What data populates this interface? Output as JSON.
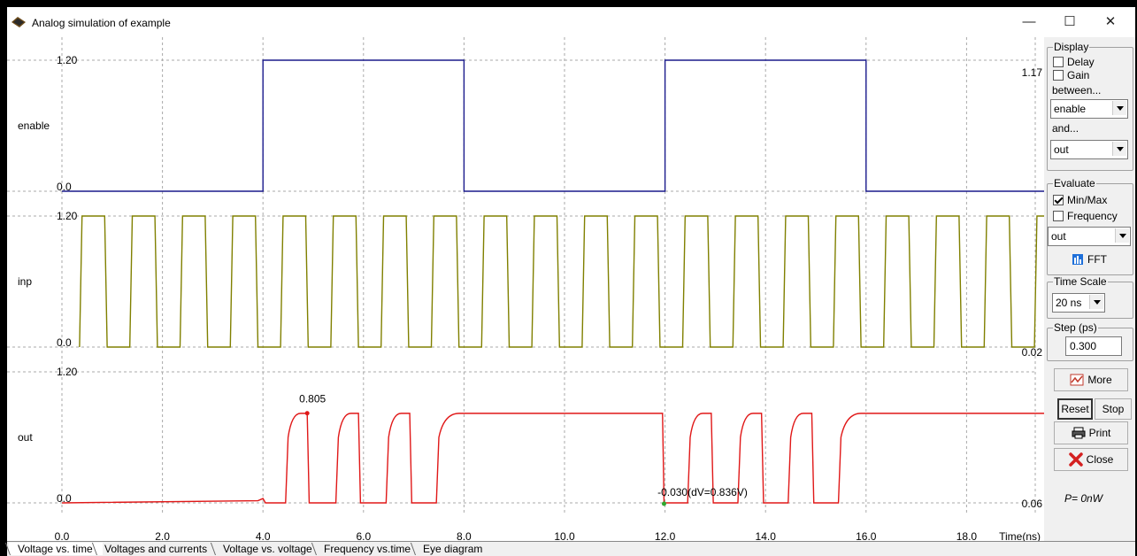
{
  "window": {
    "title": "Analog simulation of example",
    "minimize": "—",
    "maximize": "☐",
    "close": "✕"
  },
  "plot": {
    "x_axis_label": "Time(ns)",
    "x_ticks": [
      "0.0",
      "2.0",
      "4.0",
      "6.0",
      "8.0",
      "10.0",
      "12.0",
      "14.0",
      "16.0",
      "18.0"
    ],
    "signals": [
      {
        "name": "enable",
        "y_top": "1.20",
        "y_bottom": "0.0",
        "right_value": "1.17",
        "color": "#1a1a8c"
      },
      {
        "name": "inp",
        "y_top": "1.20",
        "y_bottom": "0.0",
        "right_value": "0.02",
        "color": "#808000"
      },
      {
        "name": "out",
        "y_top": "1.20",
        "y_bottom": "0.0",
        "right_value": "0.06",
        "color": "#e01818"
      }
    ],
    "annotations": {
      "max_label": "0.805",
      "min_label": "-0.030(dV=0.836V)"
    }
  },
  "panel": {
    "display": {
      "title": "Display",
      "delay": "Delay",
      "gain": "Gain",
      "between": "between...",
      "sel1": "enable",
      "and": "and...",
      "sel2": "out"
    },
    "evaluate": {
      "title": "Evaluate",
      "minmax": "Min/Max",
      "frequency": "Frequency",
      "sel": "out",
      "fft": "FFT"
    },
    "timescale": {
      "title": "Time Scale",
      "value": "20 ns"
    },
    "step": {
      "title": "Step (ps)",
      "value": "0.300"
    },
    "buttons": {
      "more": "More",
      "reset": "Reset",
      "stop": "Stop",
      "print": "Print",
      "close": "Close"
    },
    "power": "P=  0nW"
  },
  "tabs": [
    "Voltage vs. time",
    "Voltages and currents",
    "Voltage vs. voltage",
    "Frequency vs.time",
    "Eye diagram"
  ]
}
